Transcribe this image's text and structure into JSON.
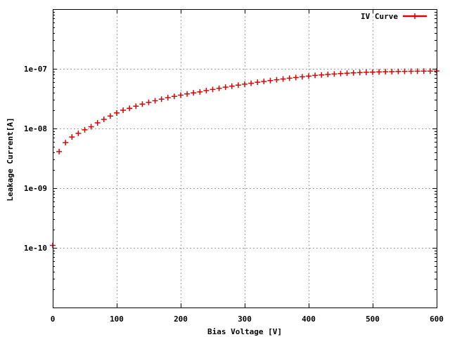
{
  "chart_data": {
    "type": "scatter",
    "title": "",
    "xlabel": "Bias Voltage [V]",
    "ylabel": "Leakage Current[A]",
    "xscale": "linear",
    "yscale": "log",
    "xlim": [
      0,
      600
    ],
    "ylim": [
      1e-11,
      1e-06
    ],
    "xticks": [
      0,
      100,
      200,
      300,
      400,
      500,
      600
    ],
    "xtick_labels": [
      "0",
      "100",
      "200",
      "300",
      "400",
      "500",
      "600"
    ],
    "yticks": [
      1e-10,
      1e-09,
      1e-08,
      1e-07
    ],
    "ytick_labels": [
      "1e-10",
      "1e-09",
      "1e-08",
      "1e-07"
    ],
    "grid": true,
    "legend_position": "top-right",
    "series": [
      {
        "name": "IV Curve",
        "color": "#e00000",
        "marker": "plus",
        "x": [
          0,
          10,
          20,
          30,
          40,
          50,
          60,
          70,
          80,
          90,
          100,
          110,
          120,
          130,
          140,
          150,
          160,
          170,
          180,
          190,
          200,
          210,
          220,
          230,
          240,
          250,
          260,
          270,
          280,
          290,
          300,
          310,
          320,
          330,
          340,
          350,
          360,
          370,
          380,
          390,
          400,
          410,
          420,
          430,
          440,
          450,
          460,
          470,
          480,
          490,
          500,
          510,
          520,
          530,
          540,
          550,
          560,
          570,
          580,
          590,
          600
        ],
        "y": [
          1.1e-10,
          4.1e-09,
          5.8e-09,
          7.2e-09,
          8.3e-09,
          9.5e-09,
          1.07e-08,
          1.24e-08,
          1.42e-08,
          1.62e-08,
          1.82e-08,
          2.02e-08,
          2.18e-08,
          2.36e-08,
          2.56e-08,
          2.74e-08,
          2.92e-08,
          3.1e-08,
          3.28e-08,
          3.45e-08,
          3.62e-08,
          3.8e-08,
          3.95e-08,
          4.1e-08,
          4.32e-08,
          4.52e-08,
          4.72e-08,
          4.92e-08,
          5.12e-08,
          5.32e-08,
          5.52e-08,
          5.72e-08,
          5.95e-08,
          6.15e-08,
          6.35e-08,
          6.55e-08,
          6.75e-08,
          6.95e-08,
          7.15e-08,
          7.35e-08,
          7.55e-08,
          7.75e-08,
          7.9e-08,
          8.05e-08,
          8.2e-08,
          8.33e-08,
          8.45e-08,
          8.55e-08,
          8.65e-08,
          8.73e-08,
          8.8e-08,
          8.87e-08,
          8.93e-08,
          8.98e-08,
          9.03e-08,
          9.07e-08,
          9.1e-08,
          9.13e-08,
          9.15e-08,
          9.17e-08,
          9.19e-08
        ]
      }
    ]
  }
}
